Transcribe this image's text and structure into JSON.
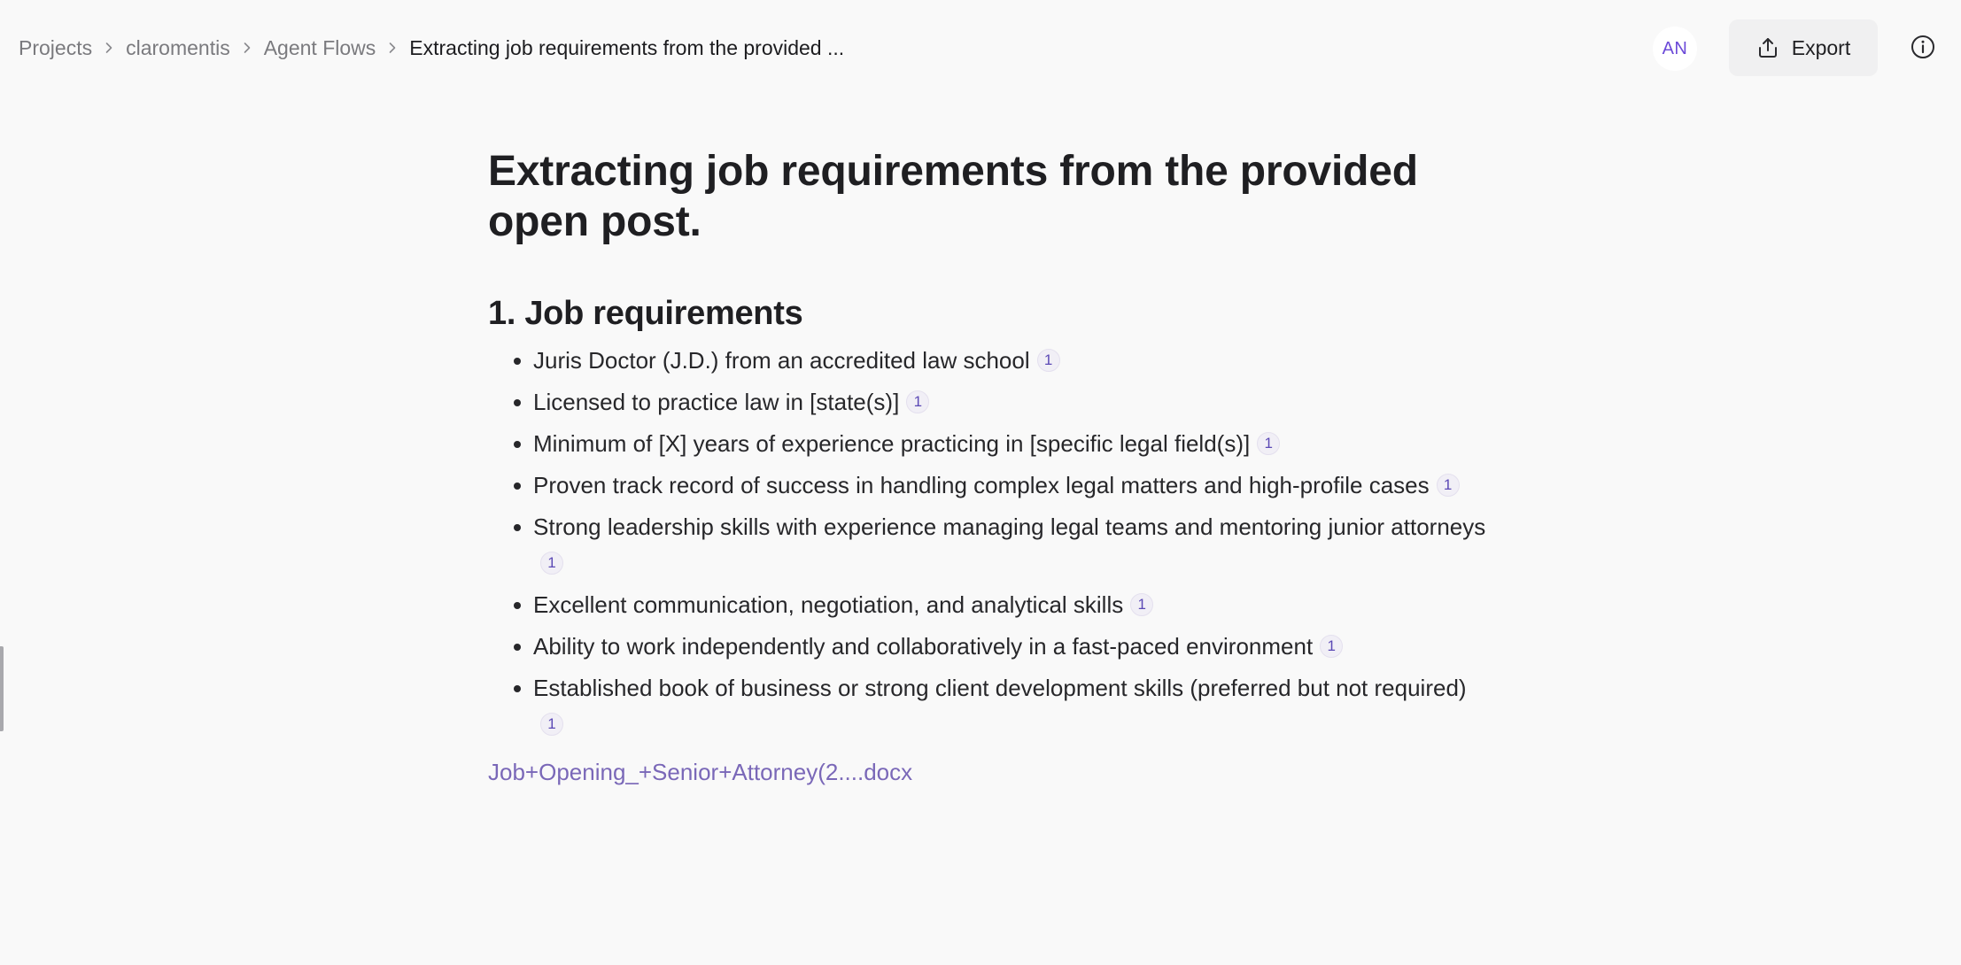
{
  "breadcrumb": {
    "items": [
      {
        "label": "Projects"
      },
      {
        "label": "claromentis"
      },
      {
        "label": "Agent Flows"
      },
      {
        "label": "Extracting job requirements from the provided ..."
      }
    ]
  },
  "header": {
    "avatar_initials": "AN",
    "export_label": "Export",
    "accent_color": "#6c4ad8"
  },
  "document": {
    "title": "Extracting job requirements from the provided open post.",
    "section_heading": "1. Job requirements",
    "requirements": [
      {
        "text": "Juris Doctor (J.D.) from an accredited law school",
        "citation": "1"
      },
      {
        "text": "Licensed to practice law in [state(s)]",
        "citation": "1"
      },
      {
        "text": "Minimum of [X] years of experience practicing in [specific legal field(s)]",
        "citation": "1"
      },
      {
        "text": "Proven track record of success in handling complex legal matters and high-profile cases",
        "citation": "1"
      },
      {
        "text": "Strong leadership skills with experience managing legal teams and mentoring junior attorneys",
        "citation": "1"
      },
      {
        "text": "Excellent communication, negotiation, and analytical skills",
        "citation": "1"
      },
      {
        "text": "Ability to work independently and collaboratively in a fast-paced environment",
        "citation": "1"
      },
      {
        "text": "Established book of business or strong client development skills (preferred but not required)",
        "citation": "1"
      }
    ],
    "source_file": "Job+Opening_+Senior+Attorney(2....docx"
  },
  "icons": {
    "breadcrumb_separator": "chevron-right-icon",
    "export": "upload-icon",
    "info": "info-icon"
  }
}
